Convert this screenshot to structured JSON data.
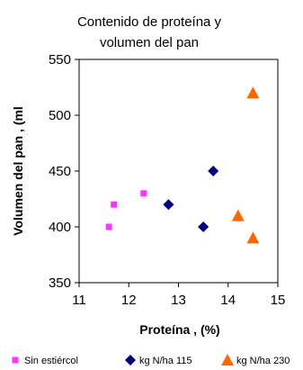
{
  "chart_data": {
    "type": "scatter",
    "title_lines": [
      "Contenido de proteína y",
      "volumen del pan"
    ],
    "xlabel": "Proteína , (%)",
    "ylabel": "Volumen del pan , (ml",
    "xlim": [
      11,
      15
    ],
    "ylim": [
      350,
      550
    ],
    "x_ticks": [
      "11",
      "12",
      "13",
      "14",
      "15"
    ],
    "y_ticks": [
      "350",
      "400",
      "450",
      "500",
      "550"
    ],
    "grid": false,
    "legend_position": "bottom",
    "series": [
      {
        "name": "Sin estiércol",
        "marker": "square",
        "color": "#ff33ff",
        "points": [
          {
            "x": 11.6,
            "y": 400
          },
          {
            "x": 11.7,
            "y": 420
          },
          {
            "x": 12.3,
            "y": 430
          }
        ]
      },
      {
        "name": "kg N/ha 115",
        "marker": "diamond",
        "color": "#000080",
        "points": [
          {
            "x": 12.8,
            "y": 420
          },
          {
            "x": 13.5,
            "y": 400
          },
          {
            "x": 13.7,
            "y": 450
          }
        ]
      },
      {
        "name": "kg N/ha 230",
        "marker": "triangle",
        "color": "#ff6600",
        "points": [
          {
            "x": 14.2,
            "y": 410
          },
          {
            "x": 14.5,
            "y": 390
          },
          {
            "x": 14.5,
            "y": 520
          }
        ]
      }
    ]
  }
}
